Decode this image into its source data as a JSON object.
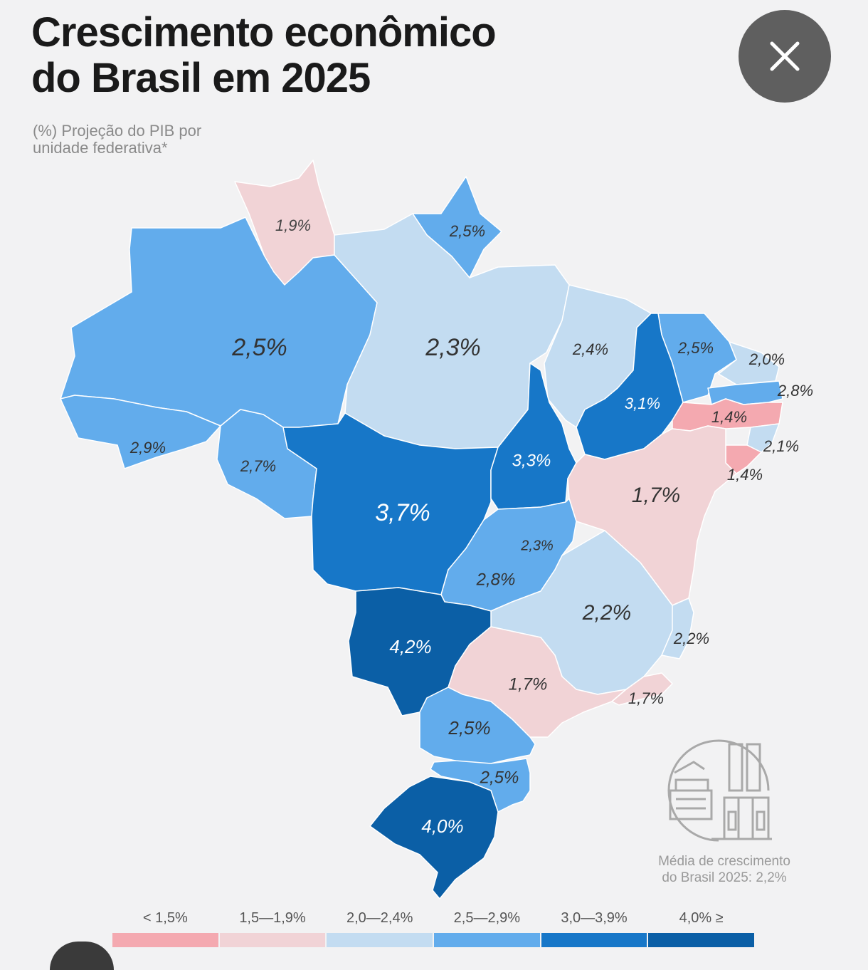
{
  "header": {
    "title_line1": "Crescimento econômico",
    "title_line2": "do Brasil em 2025",
    "subtitle_line1": "(%) Projeção do PIB por",
    "subtitle_line2": "unidade federativa*"
  },
  "close_icon": "close-icon",
  "colors": {
    "lt15": "#f4a9b0",
    "b15_19": "#f1d3d6",
    "b20_24": "#c3dcf1",
    "b25_29": "#62acec",
    "b30_39": "#1777c8",
    "ge40": "#0b5fa6",
    "border": "#ffffff",
    "background": "#f2f2f3"
  },
  "regions": [
    {
      "id": "roraima",
      "value": "1,9%",
      "cls": "b15_19"
    },
    {
      "id": "amapa",
      "value": "2,5%",
      "cls": "b25_29"
    },
    {
      "id": "amazonas",
      "value": "2,5%",
      "cls": "b25_29"
    },
    {
      "id": "para",
      "value": "2,3%",
      "cls": "b20_24"
    },
    {
      "id": "maranhao",
      "value": "2,4%",
      "cls": "b20_24"
    },
    {
      "id": "ceara",
      "value": "2,5%",
      "cls": "b25_29"
    },
    {
      "id": "rio-grande-do-norte",
      "value": "2,0%",
      "cls": "b20_24"
    },
    {
      "id": "paraiba",
      "value": "2,8%",
      "cls": "b25_29"
    },
    {
      "id": "piaui",
      "value": "3,1%",
      "cls": "b30_39"
    },
    {
      "id": "pernambuco",
      "value": "1,4%",
      "cls": "lt15"
    },
    {
      "id": "alagoas",
      "value": "2,1%",
      "cls": "b20_24"
    },
    {
      "id": "sergipe",
      "value": "1,4%",
      "cls": "lt15"
    },
    {
      "id": "acre",
      "value": "2,9%",
      "cls": "b25_29"
    },
    {
      "id": "rondonia",
      "value": "2,7%",
      "cls": "b25_29"
    },
    {
      "id": "mato-grosso",
      "value": "3,7%",
      "cls": "b30_39"
    },
    {
      "id": "tocantins",
      "value": "3,3%",
      "cls": "b30_39"
    },
    {
      "id": "bahia",
      "value": "1,7%",
      "cls": "b15_19"
    },
    {
      "id": "distrito-federal",
      "value": "2,3%",
      "cls": "b20_24"
    },
    {
      "id": "goias",
      "value": "2,8%",
      "cls": "b25_29"
    },
    {
      "id": "minas-gerais",
      "value": "2,2%",
      "cls": "b20_24"
    },
    {
      "id": "espirito-santo",
      "value": "2,2%",
      "cls": "b20_24"
    },
    {
      "id": "mato-grosso-do-sul",
      "value": "4,2%",
      "cls": "ge40"
    },
    {
      "id": "sao-paulo",
      "value": "1,7%",
      "cls": "b15_19"
    },
    {
      "id": "rio-de-janeiro",
      "value": "1,7%",
      "cls": "b15_19"
    },
    {
      "id": "parana",
      "value": "2,5%",
      "cls": "b25_29"
    },
    {
      "id": "santa-catarina",
      "value": "2,5%",
      "cls": "b25_29"
    },
    {
      "id": "rio-grande-do-sul",
      "value": "4,0%",
      "cls": "ge40"
    }
  ],
  "average": {
    "icon": "factory-icon",
    "line1": "Média de crescimento",
    "line2": "do Brasil 2025: 2,2%"
  },
  "legend": [
    {
      "label": "< 1,5%",
      "cls": "lt15"
    },
    {
      "label": "1,5—1,9%",
      "cls": "b15_19"
    },
    {
      "label": "2,0—2,4%",
      "cls": "b20_24"
    },
    {
      "label": "2,5—2,9%",
      "cls": "b25_29"
    },
    {
      "label": "3,0—3,9%",
      "cls": "b30_39"
    },
    {
      "label": "4,0% ≥",
      "cls": "ge40"
    }
  ]
}
